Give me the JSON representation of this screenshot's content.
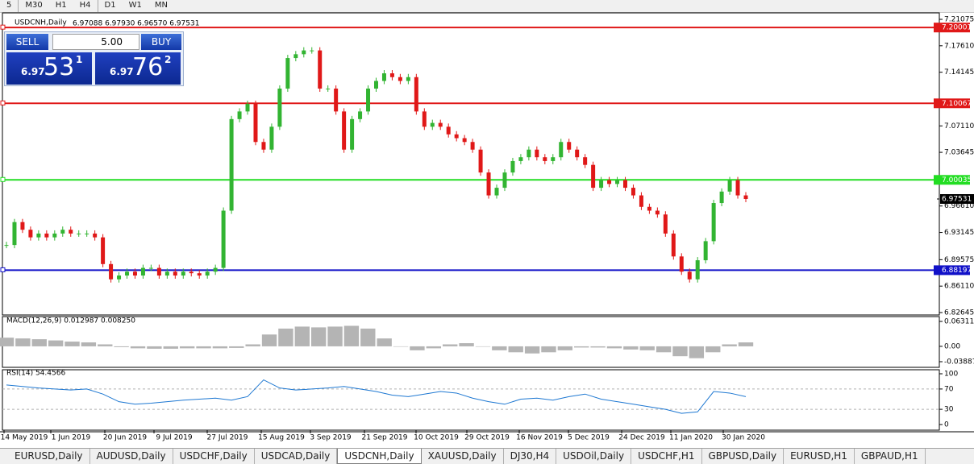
{
  "toolbar": {
    "timeframes": [
      "5",
      "M30",
      "H1",
      "H4",
      "D1",
      "W1",
      "MN"
    ]
  },
  "trade_panel": {
    "sell": "SELL",
    "buy": "BUY",
    "volume": "5.00",
    "bid": {
      "prefix": "6.97",
      "big": "53",
      "small": "1"
    },
    "ask": {
      "prefix": "6.97",
      "big": "76",
      "small": "2"
    }
  },
  "chart_data": {
    "type": "candlestick",
    "title": "USDCNH,Daily",
    "ohlc_text": "6.97088 6.97930 6.96570 6.97531",
    "up_color": "#32b432",
    "down_color": "#e01818",
    "x": [
      "14 May 2019",
      "1 Jun 2019",
      "20 Jun 2019",
      "9 Jul 2019",
      "27 Jul 2019",
      "15 Aug 2019",
      "3 Sep 2019",
      "21 Sep 2019",
      "10 Oct 2019",
      "29 Oct 2019",
      "16 Nov 2019",
      "5 Dec 2019",
      "24 Dec 2019",
      "11 Jan 2020",
      "30 Jan 2020"
    ],
    "closes": [
      6.915,
      6.945,
      6.935,
      6.925,
      6.93,
      6.925,
      6.93,
      6.935,
      6.93,
      6.93,
      6.93,
      6.925,
      6.89,
      6.87,
      6.875,
      6.88,
      6.875,
      6.885,
      6.885,
      6.875,
      6.88,
      6.875,
      6.88,
      6.878,
      6.875,
      6.88,
      6.885,
      6.96,
      7.08,
      7.09,
      7.1,
      7.05,
      7.04,
      7.07,
      7.12,
      7.16,
      7.165,
      7.17,
      7.17,
      7.12,
      7.12,
      7.09,
      7.04,
      7.08,
      7.09,
      7.12,
      7.13,
      7.14,
      7.135,
      7.13,
      7.135,
      7.09,
      7.07,
      7.075,
      7.07,
      7.06,
      7.055,
      7.05,
      7.04,
      7.01,
      6.98,
      6.99,
      7.01,
      7.025,
      7.03,
      7.04,
      7.03,
      7.025,
      7.03,
      7.05,
      7.04,
      7.03,
      7.02,
      6.99,
      7.0,
      6.995,
      7.0,
      6.99,
      6.98,
      6.965,
      6.96,
      6.955,
      6.93,
      6.9,
      6.88,
      6.87,
      6.895,
      6.92,
      6.97,
      6.985,
      7.0,
      6.98,
      6.97531
    ],
    "ylim": [
      6.82645,
      7.21075
    ],
    "yticks": [
      7.21075,
      {
        "value": 7.1761,
        "label": "7.17610"
      },
      7.14145,
      {
        "value": 7.0711,
        "label": "7.07110"
      },
      7.03645,
      {
        "value": 6.9661,
        "label": "6.96610"
      },
      6.93145,
      6.89575,
      {
        "value": 6.8611,
        "label": "6.86110"
      },
      6.82645
    ],
    "levels": [
      {
        "value": 7.20001,
        "color": "#e01818"
      },
      {
        "value": 7.10067,
        "color": "#e01818"
      },
      {
        "value": 7.00035,
        "color": "#22dd22"
      },
      {
        "value": 6.88197,
        "color": "#1010c8"
      }
    ],
    "current": 6.97531,
    "macd": {
      "title": "MACD(12,26,9) 0.012987 0.008250",
      "ylim": [
        -0.038877,
        0.063113
      ],
      "yticks": [
        0.063113,
        {
          "value": 0,
          "label": "0.00"
        },
        -0.038877
      ],
      "values": [
        0.022,
        0.02,
        0.018,
        0.015,
        0.012,
        0.01,
        0.005,
        -0.002,
        -0.005,
        -0.006,
        -0.006,
        -0.005,
        -0.005,
        -0.005,
        -0.004,
        0.005,
        0.03,
        0.045,
        0.05,
        0.048,
        0.05,
        0.052,
        0.045,
        0.02,
        0.0,
        -0.01,
        -0.005,
        0.005,
        0.008,
        0.0,
        -0.01,
        -0.015,
        -0.018,
        -0.015,
        -0.01,
        -0.003,
        -0.003,
        -0.005,
        -0.008,
        -0.01,
        -0.015,
        -0.025,
        -0.03,
        -0.015,
        0.005,
        0.01
      ]
    },
    "rsi": {
      "title": "RSI(14) 54.4566",
      "ylim": [
        0,
        100
      ],
      "yticks": [
        100,
        70,
        30,
        0
      ],
      "color": "#1e78d2",
      "values": [
        78,
        75,
        72,
        70,
        68,
        70,
        60,
        45,
        40,
        42,
        45,
        48,
        50,
        52,
        48,
        55,
        88,
        72,
        68,
        70,
        72,
        75,
        70,
        65,
        58,
        55,
        60,
        65,
        62,
        52,
        45,
        40,
        50,
        52,
        48,
        55,
        60,
        50,
        45,
        40,
        35,
        30,
        22,
        25,
        65,
        62,
        55
      ]
    }
  },
  "tabs": [
    {
      "label": "EURUSD,Daily",
      "active": false
    },
    {
      "label": "AUDUSD,Daily",
      "active": false
    },
    {
      "label": "USDCHF,Daily",
      "active": false
    },
    {
      "label": "USDCAD,Daily",
      "active": false
    },
    {
      "label": "USDCNH,Daily",
      "active": true
    },
    {
      "label": "XAUUSD,Daily",
      "active": false
    },
    {
      "label": "DJ30,H4",
      "active": false
    },
    {
      "label": "USDOil,Daily",
      "active": false
    },
    {
      "label": "USDCHF,H1",
      "active": false
    },
    {
      "label": "GBPUSD,Daily",
      "active": false
    },
    {
      "label": "EURUSD,H1",
      "active": false
    },
    {
      "label": "GBPAUD,H1",
      "active": false
    }
  ]
}
